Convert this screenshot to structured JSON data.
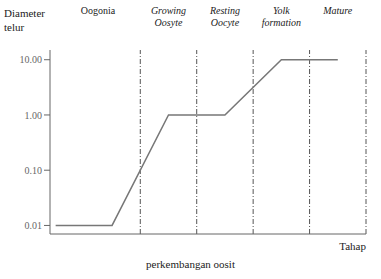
{
  "chart_data": {
    "type": "line",
    "x": [
      0,
      1,
      2,
      3,
      4,
      5
    ],
    "values": [
      0.01,
      0.01,
      1.0,
      1.0,
      10.0,
      10.0
    ],
    "color": "#777777",
    "log": "y",
    "xlim": [
      -0.1,
      5.5
    ],
    "ylim": [
      0.007,
      15.0
    ],
    "yticks": [
      0.01,
      {
        "value": 0.1,
        "label": "0.10"
      },
      {
        "value": 1.0,
        "label": "1.00"
      },
      {
        "value": 10.0,
        "label": "10.00"
      }
    ],
    "tick_labels": "y",
    "grid": false,
    "ylabel": "Diameter\ntelur",
    "xlabel": "Tahap\nperkembangan oosit",
    "annotations": [
      {
        "text": "Oogonia",
        "x": 0.75
      },
      {
        "text": "Growing\nOosyte",
        "x": 2.0
      },
      {
        "text": "Resting\nOocyte",
        "x": 3.0
      },
      {
        "text": "Yolk\nformation",
        "x": 4.0
      },
      {
        "text": "Mature",
        "x": 5.0
      }
    ],
    "vlines": {
      "x": [
        1.5,
        2.5,
        3.5,
        4.5,
        5.5
      ],
      "color": "#555555"
    }
  }
}
